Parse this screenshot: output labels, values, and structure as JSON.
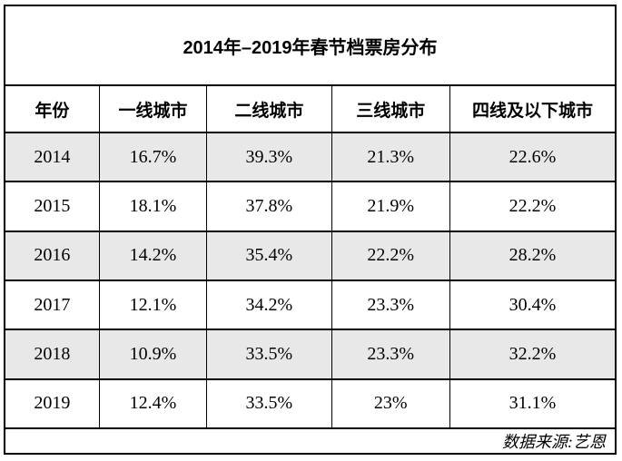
{
  "title": "2014年–2019年春节档票房分布",
  "table": {
    "columns": [
      "年份",
      "一线城市",
      "二线城市",
      "三线城市",
      "四线及以下城市"
    ],
    "rows": [
      {
        "year": "2014",
        "values": [
          "16.7%",
          "39.3%",
          "21.3%",
          "22.6%"
        ],
        "highlighted": true
      },
      {
        "year": "2015",
        "values": [
          "18.1%",
          "37.8%",
          "21.9%",
          "22.2%"
        ],
        "highlighted": false
      },
      {
        "year": "2016",
        "values": [
          "14.2%",
          "35.4%",
          "22.2%",
          "28.2%"
        ],
        "highlighted": true
      },
      {
        "year": "2017",
        "values": [
          "12.1%",
          "34.2%",
          "23.3%",
          "30.4%"
        ],
        "highlighted": false
      },
      {
        "year": "2018",
        "values": [
          "10.9%",
          "33.5%",
          "23.3%",
          "32.2%"
        ],
        "highlighted": true
      },
      {
        "year": "2019",
        "values": [
          "12.4%",
          "33.5%",
          "23%",
          "31.1%"
        ],
        "highlighted": false
      }
    ]
  },
  "footer": {
    "source_label": "数据来源:艺恩"
  },
  "colors": {
    "background": "#ffffff",
    "border": "#000000",
    "alt_row_bg": "#e8e8e8",
    "text": "#000000"
  },
  "chart_data": {
    "type": "table",
    "title": "2014年–2019年春节档票房分布",
    "categories": [
      "2014",
      "2015",
      "2016",
      "2017",
      "2018",
      "2019"
    ],
    "unit": "%",
    "series": [
      {
        "name": "一线城市",
        "values": [
          16.7,
          18.1,
          14.2,
          12.1,
          10.9,
          12.4
        ]
      },
      {
        "name": "二线城市",
        "values": [
          39.3,
          37.8,
          35.4,
          34.2,
          33.5,
          33.5
        ]
      },
      {
        "name": "三线城市",
        "values": [
          21.3,
          21.9,
          22.2,
          23.3,
          23.3,
          23
        ]
      },
      {
        "name": "四线及以下城市",
        "values": [
          22.6,
          22.2,
          28.2,
          30.4,
          32.2,
          31.1
        ]
      }
    ],
    "source": "艺恩"
  }
}
